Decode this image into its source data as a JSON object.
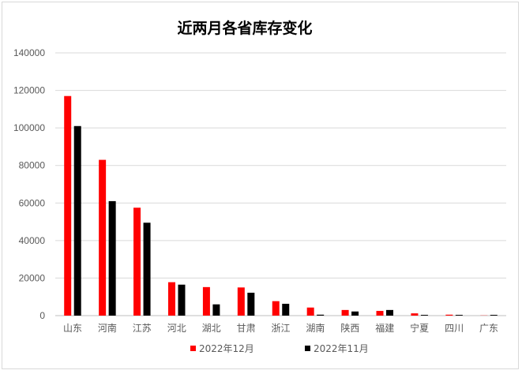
{
  "chart_data": {
    "type": "bar",
    "title": "近两月各省库存变化",
    "xlabel": "",
    "ylabel": "",
    "ylim": [
      0,
      140000
    ],
    "yticks": [
      0,
      20000,
      40000,
      60000,
      80000,
      100000,
      120000,
      140000
    ],
    "grid": true,
    "legend_position": "bottom",
    "categories": [
      "山东",
      "河南",
      "江苏",
      "河北",
      "湖北",
      "甘肃",
      "浙江",
      "湖南",
      "陕西",
      "福建",
      "宁夏",
      "四川",
      "广东"
    ],
    "series": [
      {
        "name": "2022年12月",
        "color": "#ff0000",
        "values": [
          117000,
          83000,
          57500,
          17800,
          15200,
          15000,
          7700,
          4300,
          3000,
          2500,
          1200,
          500,
          100
        ]
      },
      {
        "name": "2022年11月",
        "color": "#000000",
        "values": [
          101000,
          61000,
          49500,
          16500,
          6000,
          12200,
          6300,
          500,
          2200,
          3000,
          400,
          400,
          400
        ]
      }
    ]
  }
}
